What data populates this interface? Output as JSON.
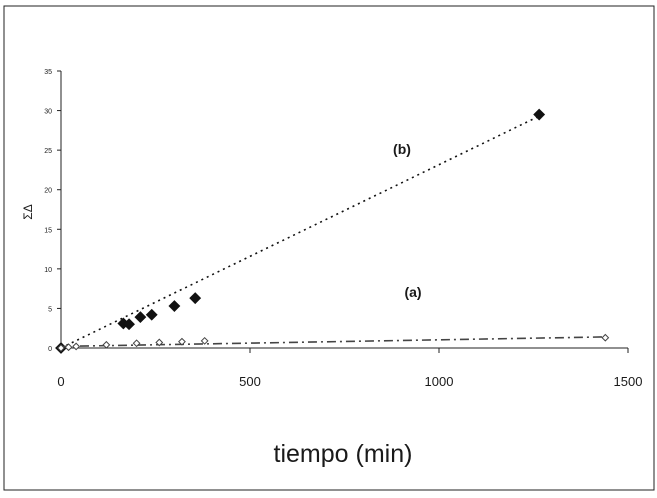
{
  "chart_data": {
    "type": "scatter",
    "title": "",
    "xlabel": "tiempo (min)",
    "ylabel": "ΣΔ",
    "xlim": [
      0,
      1500
    ],
    "ylim": [
      0,
      35
    ],
    "x_ticks": [
      0,
      500,
      1000,
      1500
    ],
    "y_ticks": [
      0,
      5,
      10,
      15,
      20,
      25,
      30,
      35
    ],
    "grid": false,
    "legend": "none",
    "series": [
      {
        "label": "(b)",
        "marker": "diamond-filled",
        "line": "dotted",
        "color": "#111111",
        "points": [
          [
            0,
            0
          ],
          [
            165,
            3.1
          ],
          [
            180,
            3.0
          ],
          [
            210,
            3.9
          ],
          [
            240,
            4.2
          ],
          [
            300,
            5.3
          ],
          [
            355,
            6.3
          ],
          [
            1265,
            29.5
          ]
        ],
        "trend": [
          [
            0,
            0
          ],
          [
            1265,
            29.3
          ]
        ]
      },
      {
        "label": "(a)",
        "marker": "diamond-open",
        "line": "dash-dot",
        "color": "#444444",
        "points": [
          [
            0,
            0
          ],
          [
            20,
            0.1
          ],
          [
            40,
            0.2
          ],
          [
            120,
            0.4
          ],
          [
            200,
            0.6
          ],
          [
            260,
            0.7
          ],
          [
            320,
            0.8
          ],
          [
            380,
            0.9
          ],
          [
            1440,
            1.3
          ]
        ],
        "trend": [
          [
            0,
            0.2
          ],
          [
            1440,
            1.4
          ]
        ]
      }
    ]
  }
}
